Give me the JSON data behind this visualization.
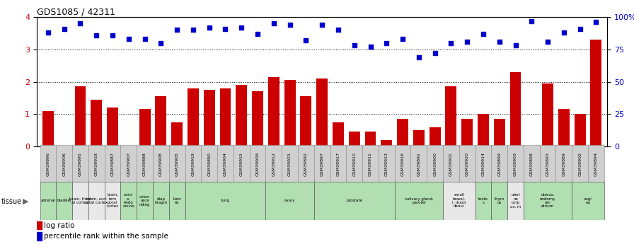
{
  "title": "GDS1085 / 42311",
  "samples": [
    "GSM39896",
    "GSM39906",
    "GSM39895",
    "GSM39918",
    "GSM39887",
    "GSM39907",
    "GSM39888",
    "GSM39908",
    "GSM39905",
    "GSM39919",
    "GSM39890",
    "GSM39904",
    "GSM39915",
    "GSM39909",
    "GSM39912",
    "GSM39921",
    "GSM39892",
    "GSM39897",
    "GSM39917",
    "GSM39910",
    "GSM39911",
    "GSM39913",
    "GSM39916",
    "GSM39891",
    "GSM39900",
    "GSM39901",
    "GSM39920",
    "GSM39914",
    "GSM39899",
    "GSM39903",
    "GSM39898",
    "GSM39893",
    "GSM39889",
    "GSM39902",
    "GSM39894"
  ],
  "log_ratio": [
    1.1,
    0.0,
    1.85,
    1.45,
    1.2,
    0.0,
    1.15,
    1.55,
    0.75,
    1.8,
    1.75,
    1.8,
    1.9,
    1.7,
    2.15,
    2.05,
    1.55,
    2.1,
    0.75,
    0.45,
    0.45,
    0.2,
    0.85,
    0.5,
    0.6,
    1.85,
    0.85,
    1.0,
    0.85,
    2.3,
    0.0,
    1.95,
    1.15,
    1.0,
    3.3
  ],
  "percentile_pct": [
    88.0,
    91.0,
    95.0,
    86.0,
    86.0,
    83.0,
    83.0,
    80.0,
    90.0,
    90.0,
    92.0,
    91.0,
    92.0,
    87.0,
    95.0,
    94.0,
    82.0,
    94.0,
    90.0,
    78.0,
    77.0,
    80.0,
    83.0,
    69.0,
    72.0,
    80.0,
    81.0,
    87.0,
    81.0,
    78.0,
    97.0,
    81.0,
    88.0,
    91.0,
    96.0
  ],
  "tissues": [
    {
      "name": "adrenal",
      "start": 0,
      "end": 1,
      "color": "#b2dfb2"
    },
    {
      "name": "bladder",
      "start": 1,
      "end": 2,
      "color": "#b2dfb2"
    },
    {
      "name": "brain, front\nal cortex",
      "start": 2,
      "end": 3,
      "color": "#e8e8e8"
    },
    {
      "name": "brain, occi\npital cortex",
      "start": 3,
      "end": 4,
      "color": "#e8e8e8"
    },
    {
      "name": "brain,\ntem\nporal\ncortex",
      "start": 4,
      "end": 5,
      "color": "#e8e8e8"
    },
    {
      "name": "cervi\nx,\nendo\ncervix",
      "start": 5,
      "end": 6,
      "color": "#b2dfb2"
    },
    {
      "name": "colon\nasce\nnding",
      "start": 6,
      "end": 7,
      "color": "#b2dfb2"
    },
    {
      "name": "diap\nhragm",
      "start": 7,
      "end": 8,
      "color": "#b2dfb2"
    },
    {
      "name": "kidn\ney",
      "start": 8,
      "end": 9,
      "color": "#b2dfb2"
    },
    {
      "name": "lung",
      "start": 9,
      "end": 14,
      "color": "#b2dfb2"
    },
    {
      "name": "ovary",
      "start": 14,
      "end": 17,
      "color": "#b2dfb2"
    },
    {
      "name": "prostate",
      "start": 17,
      "end": 22,
      "color": "#b2dfb2"
    },
    {
      "name": "salivary gland,\nparotid",
      "start": 22,
      "end": 25,
      "color": "#b2dfb2"
    },
    {
      "name": "small\nbowel,\nI, duod\ndenui",
      "start": 25,
      "end": 27,
      "color": "#e8e8e8"
    },
    {
      "name": "teste\ns",
      "start": 27,
      "end": 28,
      "color": "#b2dfb2"
    },
    {
      "name": "thym\nus",
      "start": 28,
      "end": 29,
      "color": "#b2dfb2"
    },
    {
      "name": "uteri\nne\ncorp\nus, m",
      "start": 29,
      "end": 30,
      "color": "#e8e8e8"
    },
    {
      "name": "uterus,\nendomy\nom\netrium",
      "start": 30,
      "end": 33,
      "color": "#b2dfb2"
    },
    {
      "name": "vagi\nna",
      "start": 33,
      "end": 35,
      "color": "#b2dfb2"
    }
  ],
  "ylim_left": [
    0,
    4
  ],
  "ylim_right": [
    0,
    100
  ],
  "yticks_left": [
    0,
    1,
    2,
    3,
    4
  ],
  "yticks_right": [
    0,
    25,
    50,
    75,
    100
  ],
  "yticklabels_right": [
    "0",
    "25",
    "50",
    "75",
    "100%"
  ],
  "bar_color": "#cc0000",
  "dot_color": "#0000cc",
  "background_color": "#ffffff",
  "gsm_box_color": "#d0d0d0",
  "title_fontsize": 9
}
